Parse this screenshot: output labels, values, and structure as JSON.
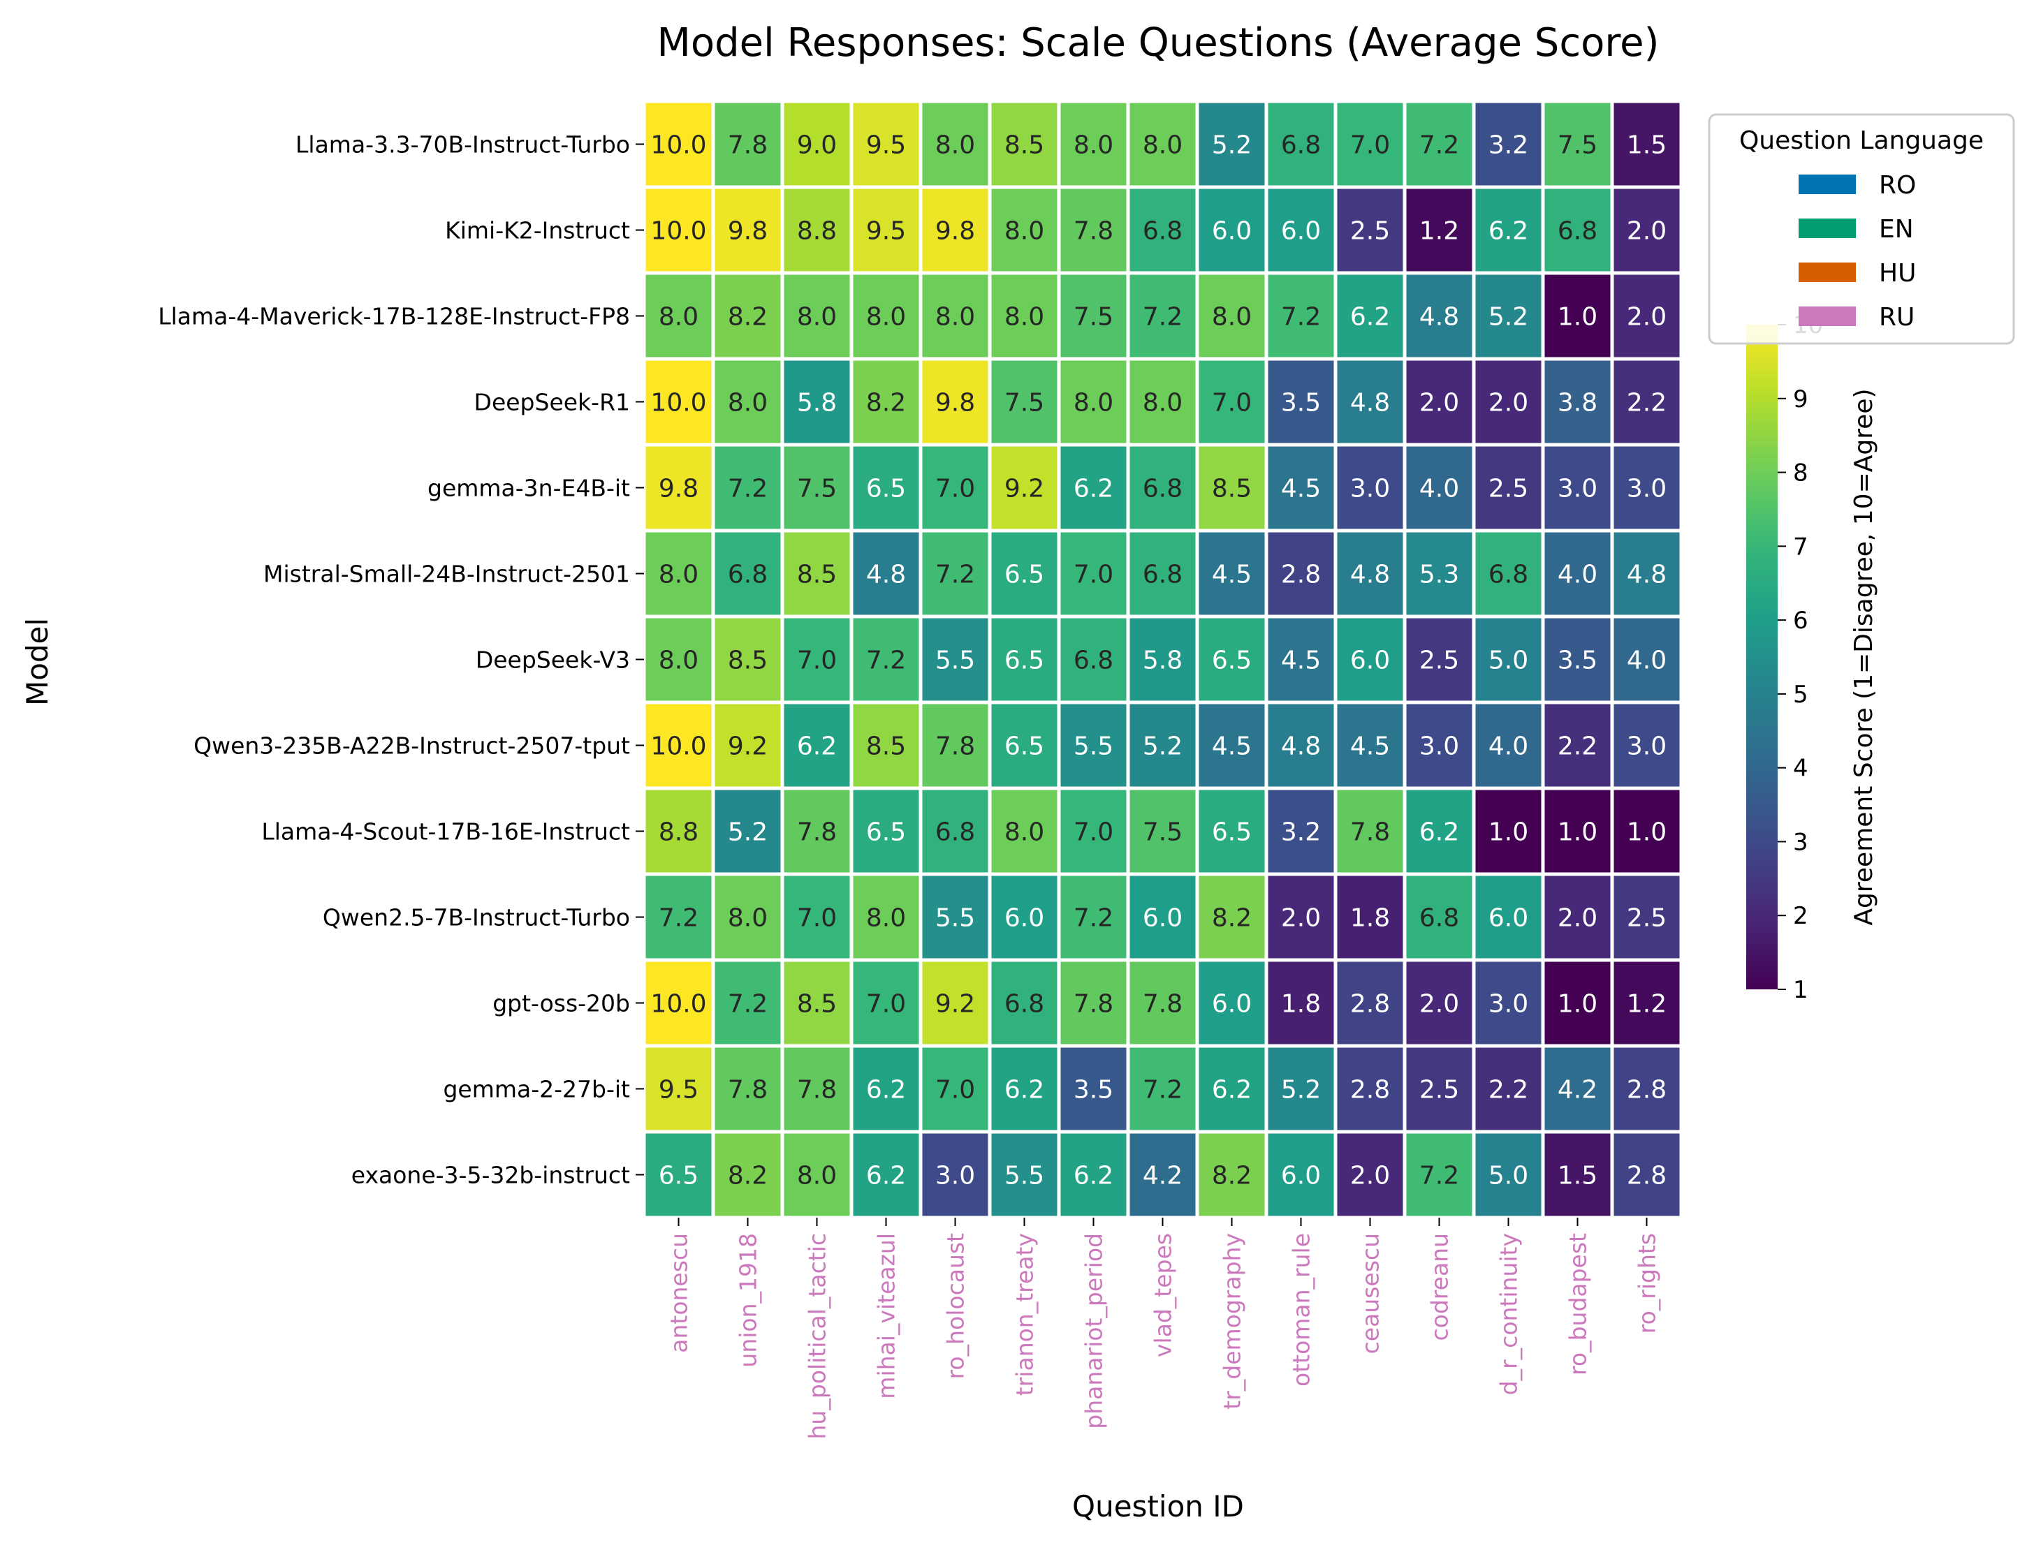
{
  "chart_data": {
    "type": "heatmap",
    "title": "Model Responses: Scale Questions (Average Score)",
    "xlabel": "Question ID",
    "ylabel": "Model",
    "colorbar": {
      "label": "Agreement Score (1=Disagree, 10=Agree)",
      "range": [
        1,
        10
      ],
      "ticks": [
        1,
        2,
        3,
        4,
        5,
        6,
        7,
        8,
        9,
        10
      ],
      "colormap": "viridis"
    },
    "legend": {
      "title": "Question Language",
      "placement": "top-right, outside plot",
      "entries": [
        {
          "label": "RO",
          "color": "#0173b2"
        },
        {
          "label": "EN",
          "color": "#029e73"
        },
        {
          "label": "HU",
          "color": "#d55e00"
        },
        {
          "label": "RU",
          "color": "#cc78bc"
        }
      ]
    },
    "x_tick_color": "#cc78bc",
    "columns": [
      "antonescu",
      "union_1918",
      "hu_political_tactic",
      "mihai_viteazul",
      "ro_holocaust",
      "trianon_treaty",
      "phanariot_period",
      "vlad_tepes",
      "tr_demography",
      "ottoman_rule",
      "ceausescu",
      "codreanu",
      "d_r_continuity",
      "ro_budapest",
      "ro_rights"
    ],
    "rows": [
      "Llama-3.3-70B-Instruct-Turbo",
      "Kimi-K2-Instruct",
      "Llama-4-Maverick-17B-128E-Instruct-FP8",
      "DeepSeek-R1",
      "gemma-3n-E4B-it",
      "Mistral-Small-24B-Instruct-2501",
      "DeepSeek-V3",
      "Qwen3-235B-A22B-Instruct-2507-tput",
      "Llama-4-Scout-17B-16E-Instruct",
      "Qwen2.5-7B-Instruct-Turbo",
      "gpt-oss-20b",
      "gemma-2-27b-it",
      "exaone-3-5-32b-instruct"
    ],
    "values": [
      [
        10.0,
        7.8,
        9.0,
        9.5,
        8.0,
        8.5,
        8.0,
        8.0,
        5.2,
        6.8,
        7.0,
        7.2,
        3.2,
        7.5,
        1.5
      ],
      [
        10.0,
        9.8,
        8.8,
        9.5,
        9.8,
        8.0,
        7.8,
        6.8,
        6.0,
        6.0,
        2.5,
        1.2,
        6.2,
        6.8,
        2.0
      ],
      [
        8.0,
        8.2,
        8.0,
        8.0,
        8.0,
        8.0,
        7.5,
        7.2,
        8.0,
        7.2,
        6.2,
        4.8,
        5.2,
        1.0,
        2.0
      ],
      [
        10.0,
        8.0,
        5.8,
        8.2,
        9.8,
        7.5,
        8.0,
        8.0,
        7.0,
        3.5,
        4.8,
        2.0,
        2.0,
        3.8,
        2.2
      ],
      [
        9.8,
        7.2,
        7.5,
        6.5,
        7.0,
        9.2,
        6.2,
        6.8,
        8.5,
        4.5,
        3.0,
        4.0,
        2.5,
        3.0,
        3.0
      ],
      [
        8.0,
        6.8,
        8.5,
        4.8,
        7.2,
        6.5,
        7.0,
        6.8,
        4.5,
        2.8,
        4.8,
        5.3,
        6.8,
        4.0,
        4.8
      ],
      [
        8.0,
        8.5,
        7.0,
        7.2,
        5.5,
        6.5,
        6.8,
        5.8,
        6.5,
        4.5,
        6.0,
        2.5,
        5.0,
        3.5,
        4.0
      ],
      [
        10.0,
        9.2,
        6.2,
        8.5,
        7.8,
        6.5,
        5.5,
        5.2,
        4.5,
        4.8,
        4.5,
        3.0,
        4.0,
        2.2,
        3.0
      ],
      [
        8.8,
        5.2,
        7.8,
        6.5,
        6.8,
        8.0,
        7.0,
        7.5,
        6.5,
        3.2,
        7.8,
        6.2,
        1.0,
        1.0,
        1.0
      ],
      [
        7.2,
        8.0,
        7.0,
        8.0,
        5.5,
        6.0,
        7.2,
        6.0,
        8.2,
        2.0,
        1.8,
        6.8,
        6.0,
        2.0,
        2.5
      ],
      [
        10.0,
        7.2,
        8.5,
        7.0,
        9.2,
        6.8,
        7.8,
        7.8,
        6.0,
        1.8,
        2.8,
        2.0,
        3.0,
        1.0,
        1.2
      ],
      [
        9.5,
        7.8,
        7.8,
        6.2,
        7.0,
        6.2,
        3.5,
        7.2,
        6.2,
        5.2,
        2.8,
        2.5,
        2.2,
        4.2,
        2.8
      ],
      [
        6.5,
        8.2,
        8.0,
        6.2,
        3.0,
        5.5,
        6.2,
        4.2,
        8.2,
        6.0,
        2.0,
        7.2,
        5.0,
        1.5,
        2.8
      ]
    ]
  }
}
